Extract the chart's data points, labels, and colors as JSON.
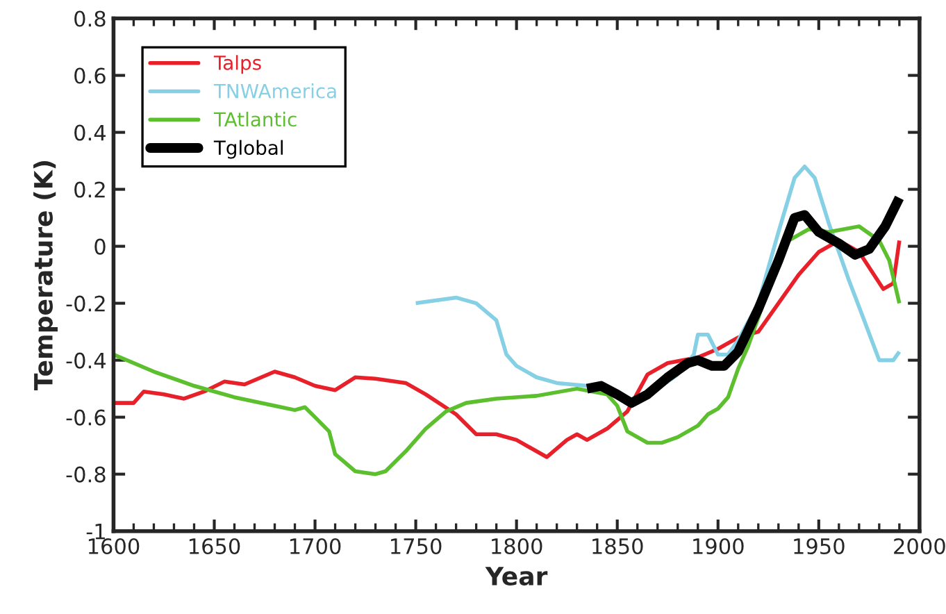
{
  "chart_data": {
    "type": "line",
    "xlabel": "Year",
    "ylabel": "Temperature (K)",
    "xlim": [
      1600,
      2000
    ],
    "ylim": [
      -1,
      0.8
    ],
    "xticks": [
      1600,
      1650,
      1700,
      1750,
      1800,
      1850,
      1900,
      1950,
      2000
    ],
    "yticks": [
      -1,
      -0.8,
      -0.6,
      -0.4,
      -0.2,
      0,
      0.2,
      0.4,
      0.6,
      0.8
    ],
    "grid": false,
    "legend": "top left",
    "marker": "none",
    "line_style": "solid",
    "series": [
      {
        "name": "Talps",
        "color": "#e8202a",
        "x": [
          1600,
          1610,
          1615,
          1625,
          1635,
          1645,
          1655,
          1665,
          1680,
          1690,
          1700,
          1710,
          1720,
          1730,
          1745,
          1755,
          1770,
          1780,
          1790,
          1800,
          1815,
          1825,
          1830,
          1835,
          1845,
          1855,
          1865,
          1875,
          1890,
          1900,
          1910,
          1920,
          1930,
          1940,
          1950,
          1960,
          1970,
          1982,
          1987,
          1990
        ],
        "values": [
          -0.55,
          -0.55,
          -0.51,
          -0.52,
          -0.535,
          -0.51,
          -0.475,
          -0.485,
          -0.44,
          -0.46,
          -0.49,
          -0.505,
          -0.46,
          -0.465,
          -0.48,
          -0.52,
          -0.59,
          -0.66,
          -0.66,
          -0.68,
          -0.74,
          -0.68,
          -0.66,
          -0.68,
          -0.64,
          -0.58,
          -0.45,
          -0.41,
          -0.39,
          -0.36,
          -0.32,
          -0.3,
          -0.2,
          -0.1,
          -0.02,
          0.02,
          -0.02,
          -0.15,
          -0.13,
          0.02
        ]
      },
      {
        "name": "TNWAmerica",
        "color": "#86d0e6",
        "x": [
          1750,
          1770,
          1780,
          1790,
          1795,
          1800,
          1810,
          1820,
          1835,
          1850,
          1860,
          1870,
          1880,
          1888,
          1890,
          1895,
          1900,
          1905,
          1910,
          1920,
          1930,
          1938,
          1943,
          1948,
          1955,
          1965,
          1972,
          1980,
          1987,
          1990
        ],
        "values": [
          -0.2,
          -0.18,
          -0.2,
          -0.26,
          -0.38,
          -0.42,
          -0.46,
          -0.48,
          -0.49,
          -0.52,
          -0.55,
          -0.5,
          -0.45,
          -0.38,
          -0.31,
          -0.31,
          -0.38,
          -0.38,
          -0.33,
          -0.2,
          0.05,
          0.24,
          0.28,
          0.24,
          0.08,
          -0.12,
          -0.25,
          -0.4,
          -0.4,
          -0.37
        ]
      },
      {
        "name": "TAtlantic",
        "color": "#5cbf2e",
        "x": [
          1600,
          1620,
          1640,
          1660,
          1680,
          1690,
          1695,
          1700,
          1707,
          1710,
          1720,
          1730,
          1735,
          1745,
          1755,
          1765,
          1775,
          1790,
          1810,
          1830,
          1845,
          1850,
          1855,
          1865,
          1872,
          1880,
          1890,
          1895,
          1900,
          1905,
          1910,
          1915,
          1925,
          1935,
          1945,
          1955,
          1970,
          1980,
          1985,
          1990
        ],
        "values": [
          -0.38,
          -0.44,
          -0.49,
          -0.53,
          -0.56,
          -0.575,
          -0.565,
          -0.6,
          -0.65,
          -0.73,
          -0.79,
          -0.8,
          -0.79,
          -0.72,
          -0.64,
          -0.58,
          -0.55,
          -0.535,
          -0.525,
          -0.5,
          -0.52,
          -0.56,
          -0.65,
          -0.69,
          -0.69,
          -0.67,
          -0.63,
          -0.59,
          -0.57,
          -0.53,
          -0.43,
          -0.35,
          -0.15,
          0.02,
          0.06,
          0.05,
          0.07,
          0.02,
          -0.05,
          -0.2
        ]
      },
      {
        "name": "Tglobal",
        "color": "#000000",
        "x": [
          1835,
          1842,
          1850,
          1857,
          1865,
          1875,
          1885,
          1890,
          1897,
          1903,
          1910,
          1920,
          1930,
          1938,
          1943,
          1950,
          1960,
          1968,
          1975,
          1983,
          1990
        ],
        "values": [
          -0.5,
          -0.49,
          -0.52,
          -0.55,
          -0.52,
          -0.46,
          -0.41,
          -0.4,
          -0.42,
          -0.42,
          -0.37,
          -0.22,
          -0.05,
          0.1,
          0.11,
          0.05,
          0.01,
          -0.03,
          -0.01,
          0.07,
          0.17
        ]
      }
    ]
  }
}
